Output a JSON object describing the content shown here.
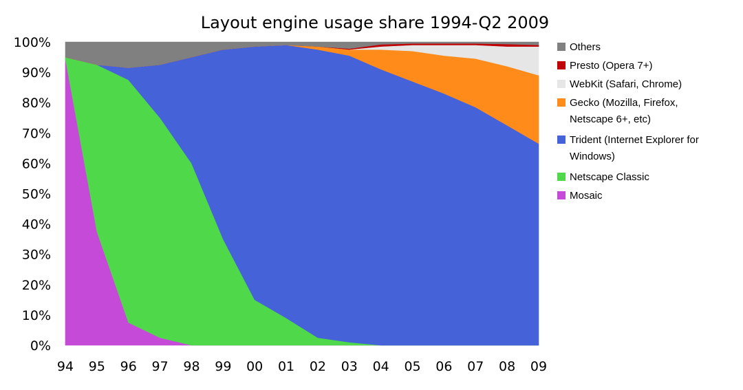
{
  "chart_data": {
    "type": "area",
    "stacked": true,
    "title": "Layout engine usage share 1994-Q2 2009",
    "xlabel": "",
    "ylabel": "",
    "ylim": [
      0,
      100
    ],
    "x": [
      "94",
      "95",
      "96",
      "97",
      "98",
      "99",
      "00",
      "01",
      "02",
      "03",
      "04",
      "05",
      "06",
      "07",
      "08",
      "09"
    ],
    "y_ticks": [
      "0%",
      "10%",
      "20%",
      "30%",
      "40%",
      "50%",
      "60%",
      "70%",
      "80%",
      "90%",
      "100%"
    ],
    "grid": false,
    "legend_position": "right",
    "series": [
      {
        "name": "Mosaic",
        "color": "#c54ad8",
        "values": [
          94.5,
          37.5,
          7.5,
          2.5,
          0,
          0,
          0,
          0,
          0,
          0,
          0,
          0,
          0,
          0,
          0,
          0
        ]
      },
      {
        "name": "Netscape Classic",
        "color": "#4fd94a",
        "values": [
          0.5,
          55,
          80,
          72.5,
          60,
          35,
          15,
          9,
          2.5,
          1,
          0,
          0,
          0,
          0,
          0,
          0
        ]
      },
      {
        "name": "Trident (Internet Explorer for Windows)",
        "color": "#4662d9",
        "values": [
          0,
          0,
          4,
          17.5,
          35,
          62.5,
          83.5,
          90,
          95,
          94.5,
          91,
          87,
          83,
          78.5,
          72.5,
          66.5
        ]
      },
      {
        "name": "Gecko (Mozilla, Firefox, Netscape 6+, etc)",
        "color": "#ff8c1a",
        "values": [
          0,
          0,
          0,
          0,
          0,
          0,
          0,
          0,
          1,
          2,
          6.5,
          10,
          12.5,
          16,
          19.5,
          22.5
        ]
      },
      {
        "name": "WebKit (Safari, Chrome)",
        "color": "#e6e6e6",
        "values": [
          0,
          0,
          0,
          0,
          0,
          0,
          0,
          0,
          0,
          0,
          1,
          2,
          3.5,
          4.5,
          6.5,
          9.5
        ]
      },
      {
        "name": "Presto (Opera 7+)",
        "color": "#c00000",
        "values": [
          0,
          0,
          0,
          0,
          0,
          0,
          0,
          0,
          0,
          0.3,
          0.7,
          0.5,
          0.5,
          0.5,
          0.8,
          0.5
        ]
      },
      {
        "name": "Others",
        "color": "#808080",
        "values": [
          5,
          7.5,
          8.5,
          7.5,
          5,
          2.5,
          1.5,
          1,
          1.5,
          2.2,
          0.8,
          0.5,
          0.5,
          0.5,
          0.7,
          1
        ]
      }
    ],
    "legend_lines": [
      [
        "Others"
      ],
      [
        "Presto (Opera 7+)"
      ],
      [
        "WebKit (Safari, Chrome)"
      ],
      [
        "Gecko (Mozilla, Firefox,",
        "Netscape 6+, etc)"
      ],
      [
        "Trident (Internet Explorer for",
        "Windows)"
      ],
      [
        "Netscape Classic"
      ],
      [
        "Mosaic"
      ]
    ]
  }
}
